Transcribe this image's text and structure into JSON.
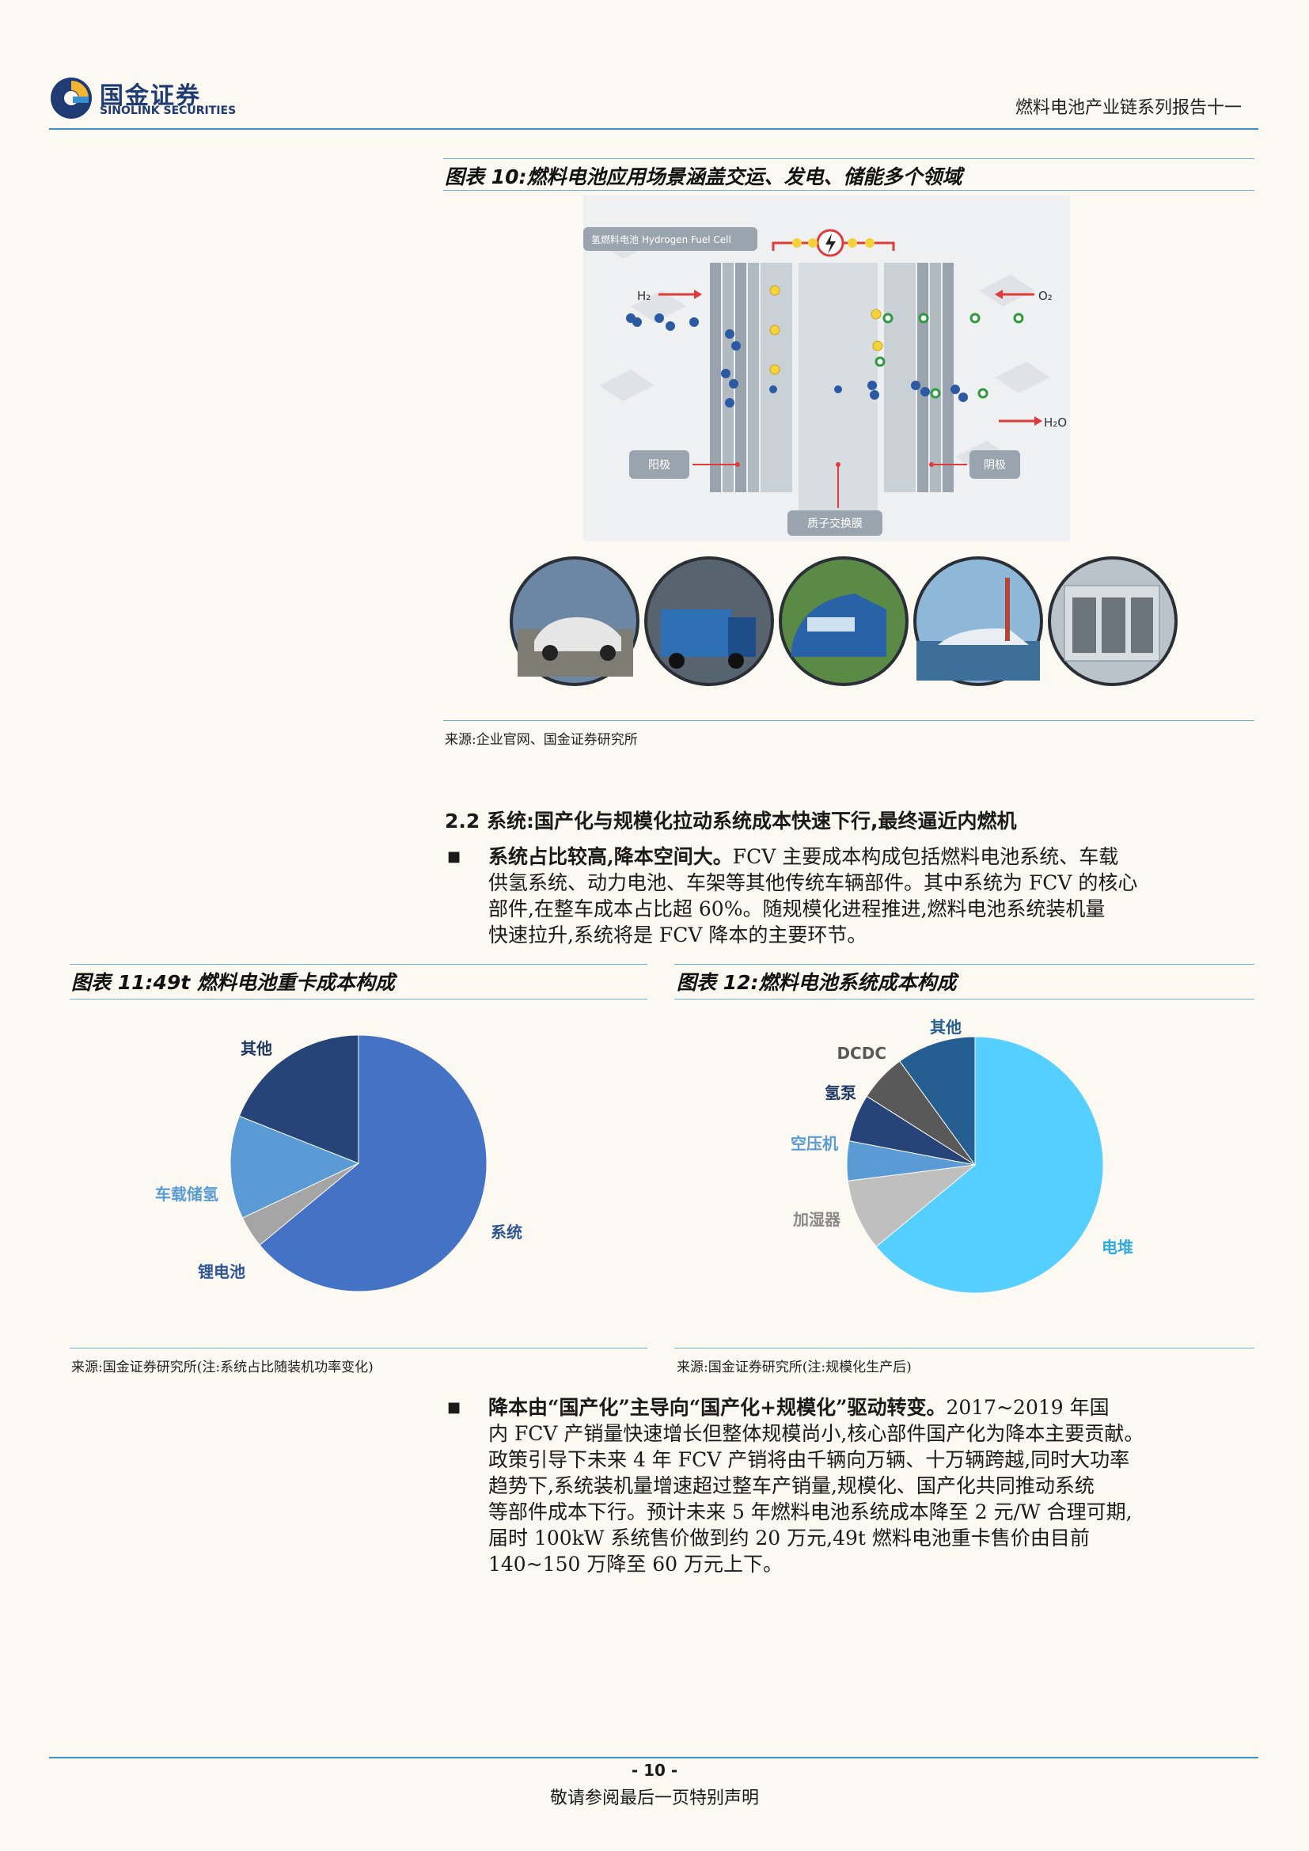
{
  "header": {
    "brand_cn": "国金证券",
    "brand_en": "SINOLINK SECURITIES",
    "report_title": "燃料电池产业链系列报告十一"
  },
  "figure10": {
    "title": "图表 10:燃料电池应用场景涵盖交运、发电、储能多个领域",
    "diagram": {
      "badge": "氢燃料电池 Hydrogen Fuel Cell",
      "h2": "H₂",
      "o2": "O₂",
      "h2o": "H₂O",
      "anode": "阳极",
      "cathode": "阴极",
      "membrane": "质子交换膜"
    },
    "photos": [
      "car-photo",
      "truck-photo",
      "train-photo",
      "ferry-photo",
      "power-station-photo"
    ],
    "source": "来源:企业官网、国金证券研究所"
  },
  "section": {
    "heading": "2.2 系统:国产化与规模化拉动系统成本快速下行,最终逼近内燃机",
    "bullet1_bold": "系统占比较高,降本空间大。",
    "bullet1_lines": [
      "FCV 主要成本构成包括燃料电池系统、车载",
      "供氢系统、动力电池、车架等其他传统车辆部件。其中系统为 FCV 的核心",
      "部件,在整车成本占比超 60%。随规模化进程推进,燃料电池系统装机量",
      "快速拉升,系统将是 FCV 降本的主要环节。"
    ],
    "bullet2_bold": "降本由“国产化”主导向“国产化+规模化”驱动转变。",
    "bullet2_lines": [
      "2017~2019 年国",
      "内 FCV 产销量快速增长但整体规模尚小,核心部件国产化为降本主要贡献。",
      "政策引导下未来 4 年 FCV 产销将由千辆向万辆、十万辆跨越,同时大功率",
      "趋势下,系统装机量增速超过整车产销量,规模化、国产化共同推动系统",
      "等部件成本下行。预计未来 5 年燃料电池系统成本降至 2 元/W 合理可期,",
      "届时 100kW 系统售价做到约 20 万元,49t 燃料电池重卡售价由目前",
      "140~150 万降至 60 万元上下。"
    ]
  },
  "figure11": {
    "title": "图表 11:49t 燃料电池重卡成本构成",
    "source": "来源:国金证券研究所(注:系统占比随装机功率变化)"
  },
  "figure12": {
    "title": "图表 12:燃料电池系统成本构成",
    "source": "来源:国金证券研究所(注:规模化生产后)"
  },
  "chart_data": [
    {
      "type": "pie",
      "categories": [
        "系统",
        "锂电池",
        "车载储氢",
        "其他"
      ],
      "values": [
        64,
        4,
        13,
        19
      ],
      "colors": [
        "#4472c4",
        "#a5a5a5",
        "#5b9bd5",
        "#264478"
      ]
    },
    {
      "type": "pie",
      "categories": [
        "电堆",
        "加湿器",
        "空压机",
        "氢泵",
        "DCDC",
        "其他"
      ],
      "values": [
        64,
        9,
        5,
        6,
        6,
        10
      ],
      "colors": [
        "#55cfff",
        "#bfbfbf",
        "#5b9bd5",
        "#264478",
        "#595959",
        "#255e91"
      ]
    }
  ],
  "footer": {
    "page": "- 10 -",
    "disclaimer": "敬请参阅最后一页特别声明"
  }
}
